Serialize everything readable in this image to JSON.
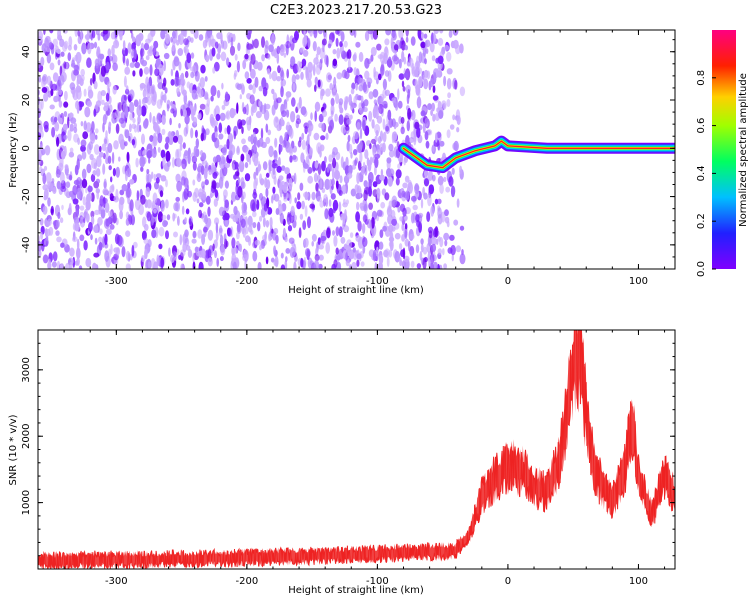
{
  "title": "C2E3.2023.217.20.53.G23",
  "colors": {
    "snr_line": "#ee2222",
    "spectrogram_noise": "#7a00ff",
    "axis": "#000000"
  },
  "chart_data": [
    {
      "type": "heatmap",
      "xlabel": "Height of straight line (km)",
      "ylabel": "Frequency (Hz)",
      "xlim": [
        -360,
        128
      ],
      "ylim": [
        -50,
        49
      ],
      "x_ticks": [
        -300,
        -200,
        -100,
        0,
        100
      ],
      "y_ticks": [
        -40,
        -20,
        0,
        20,
        40
      ],
      "colorbar": {
        "label": "Normalized spectral amplitude",
        "range": [
          0,
          1
        ],
        "ticks": [
          0.0,
          0.2,
          0.4,
          0.6,
          0.8
        ],
        "colormap": "hsv-rainbow (purple-blue-cyan-green-yellow-red-magenta)"
      },
      "features": [
        {
          "description": "broadband diffuse purple/low amplitude",
          "x_range": [
            -360,
            -50
          ],
          "amplitude_range": [
            0.0,
            0.1
          ]
        },
        {
          "description": "carrier trace",
          "points": [
            [
              -80,
              0
            ],
            [
              -62,
              -7
            ],
            [
              -50,
              -8
            ],
            [
              -40,
              -4
            ],
            [
              -25,
              -1
            ],
            [
              -10,
              1
            ],
            [
              -5,
              3
            ],
            [
              0,
              1
            ],
            [
              30,
              0
            ],
            [
              128,
              0
            ]
          ],
          "peak_amplitude": 0.85
        }
      ]
    },
    {
      "type": "line",
      "xlabel": "Height of straight line (km)",
      "ylabel": "SNR (10 * v/v)",
      "xlim": [
        -360,
        128
      ],
      "ylim": [
        0,
        3600
      ],
      "x_ticks": [
        -300,
        -200,
        -100,
        0,
        100
      ],
      "y_ticks": [
        1000,
        2000,
        3000
      ],
      "series": [
        {
          "color": "#ee2222",
          "x": [
            -360,
            -340,
            -300,
            -260,
            -220,
            -180,
            -140,
            -100,
            -60,
            -40,
            -30,
            -20,
            -10,
            0,
            10,
            20,
            30,
            40,
            45,
            50,
            55,
            60,
            65,
            70,
            80,
            90,
            95,
            100,
            110,
            120,
            128
          ],
          "y": [
            120,
            130,
            140,
            150,
            160,
            180,
            200,
            230,
            260,
            280,
            500,
            1100,
            1350,
            1550,
            1500,
            1250,
            1150,
            1650,
            2300,
            3100,
            3300,
            2350,
            1650,
            1350,
            1000,
            1500,
            2300,
            1400,
            800,
            1400,
            1100
          ]
        }
      ]
    }
  ]
}
